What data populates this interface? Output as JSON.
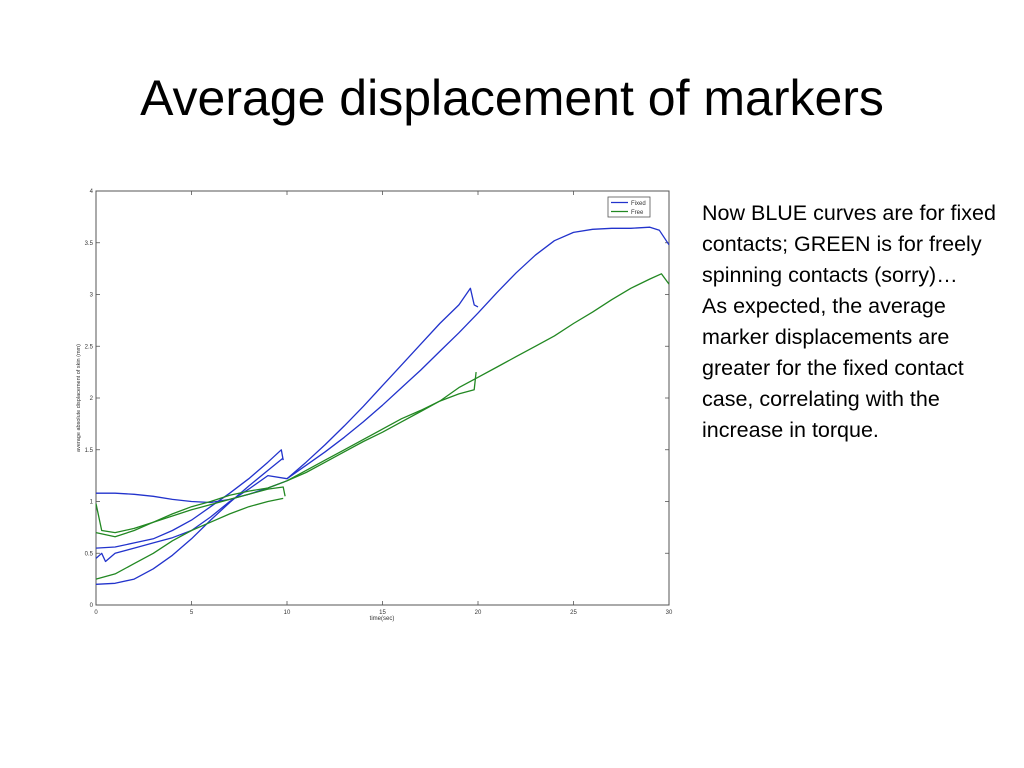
{
  "slide": {
    "title": "Average displacement of markers",
    "notes": [
      "Now BLUE curves are for fixed contacts; GREEN is for freely spinning contacts (sorry)…",
      "As expected, the average marker displacements are greater for the fixed contact case, correlating with the increase in torque."
    ]
  },
  "colors": {
    "fixed": "#2233cc",
    "free": "#228822"
  },
  "chart_data": {
    "type": "line",
    "title": "",
    "xlabel": "time(sec)",
    "ylabel": "average absolute displacement of skin (mm)",
    "xlim": [
      0,
      30
    ],
    "ylim": [
      0,
      4
    ],
    "xticks": [
      0,
      5,
      10,
      15,
      20,
      25,
      30
    ],
    "yticks": [
      0,
      0.5,
      1,
      1.5,
      2,
      2.5,
      3,
      3.5,
      4
    ],
    "grid": false,
    "legend_position": "top-right",
    "series": [
      {
        "name": "Fixed",
        "color": "#2233cc",
        "segments": [
          [
            [
              0,
              1.08
            ],
            [
              1,
              1.08
            ],
            [
              2,
              1.07
            ],
            [
              3,
              1.05
            ],
            [
              4,
              1.02
            ],
            [
              5,
              1.0
            ],
            [
              6,
              0.99
            ],
            [
              7,
              1.02
            ],
            [
              8,
              1.07
            ],
            [
              9,
              1.13
            ],
            [
              10,
              1.2
            ]
          ],
          [
            [
              0,
              0.55
            ],
            [
              1,
              0.56
            ],
            [
              2,
              0.6
            ],
            [
              3,
              0.64
            ],
            [
              4,
              0.72
            ],
            [
              5,
              0.82
            ],
            [
              6,
              0.95
            ],
            [
              7,
              1.08
            ],
            [
              8,
              1.22
            ],
            [
              9,
              1.38
            ],
            [
              9.7,
              1.5
            ],
            [
              9.8,
              1.4
            ]
          ],
          [
            [
              0,
              0.2
            ],
            [
              1,
              0.21
            ],
            [
              2,
              0.25
            ],
            [
              3,
              0.35
            ],
            [
              4,
              0.48
            ],
            [
              5,
              0.64
            ],
            [
              6,
              0.82
            ],
            [
              7,
              0.99
            ],
            [
              8,
              1.15
            ],
            [
              9,
              1.3
            ],
            [
              9.8,
              1.42
            ]
          ],
          [
            [
              0,
              0.45
            ],
            [
              0.3,
              0.5
            ],
            [
              0.5,
              0.42
            ],
            [
              1,
              0.5
            ],
            [
              2,
              0.55
            ],
            [
              3,
              0.6
            ],
            [
              4,
              0.65
            ],
            [
              5,
              0.72
            ],
            [
              6,
              0.85
            ],
            [
              7,
              1.0
            ],
            [
              8,
              1.12
            ],
            [
              9,
              1.25
            ],
            [
              10,
              1.22
            ],
            [
              11,
              1.38
            ],
            [
              12,
              1.55
            ],
            [
              13,
              1.73
            ],
            [
              14,
              1.92
            ],
            [
              15,
              2.12
            ],
            [
              16,
              2.32
            ],
            [
              17,
              2.52
            ],
            [
              18,
              2.72
            ],
            [
              19,
              2.9
            ],
            [
              19.6,
              3.06
            ],
            [
              19.8,
              2.9
            ],
            [
              20,
              2.88
            ]
          ],
          [
            [
              10,
              1.22
            ],
            [
              11,
              1.35
            ],
            [
              12,
              1.48
            ],
            [
              13,
              1.62
            ],
            [
              14,
              1.77
            ],
            [
              15,
              1.93
            ],
            [
              16,
              2.1
            ],
            [
              17,
              2.27
            ],
            [
              18,
              2.45
            ],
            [
              19,
              2.63
            ],
            [
              20,
              2.82
            ],
            [
              21,
              3.02
            ],
            [
              22,
              3.21
            ],
            [
              23,
              3.38
            ],
            [
              24,
              3.52
            ],
            [
              25,
              3.6
            ],
            [
              26,
              3.63
            ],
            [
              27,
              3.64
            ],
            [
              28,
              3.64
            ],
            [
              29,
              3.65
            ],
            [
              29.5,
              3.62
            ],
            [
              30,
              3.48
            ]
          ]
        ]
      },
      {
        "name": "Free",
        "color": "#228822",
        "segments": [
          [
            [
              0,
              0.98
            ],
            [
              0.3,
              0.72
            ],
            [
              1,
              0.7
            ],
            [
              2,
              0.74
            ],
            [
              3,
              0.8
            ],
            [
              4,
              0.86
            ],
            [
              5,
              0.92
            ],
            [
              6,
              0.97
            ],
            [
              7,
              1.02
            ],
            [
              8,
              1.07
            ],
            [
              9,
              1.12
            ],
            [
              9.8,
              1.14
            ],
            [
              9.9,
              1.05
            ]
          ],
          [
            [
              0,
              0.7
            ],
            [
              1,
              0.66
            ],
            [
              2,
              0.72
            ],
            [
              3,
              0.8
            ],
            [
              4,
              0.88
            ],
            [
              5,
              0.95
            ],
            [
              6,
              1.0
            ],
            [
              7,
              1.06
            ],
            [
              8,
              1.1
            ],
            [
              9,
              1.13
            ],
            [
              10,
              1.2
            ]
          ],
          [
            [
              0,
              0.25
            ],
            [
              1,
              0.3
            ],
            [
              2,
              0.4
            ],
            [
              3,
              0.5
            ],
            [
              4,
              0.62
            ],
            [
              5,
              0.72
            ],
            [
              6,
              0.8
            ],
            [
              7,
              0.88
            ],
            [
              8,
              0.95
            ],
            [
              9,
              1.0
            ],
            [
              9.8,
              1.03
            ]
          ],
          [
            [
              10,
              1.2
            ],
            [
              11,
              1.3
            ],
            [
              12,
              1.4
            ],
            [
              13,
              1.5
            ],
            [
              14,
              1.6
            ],
            [
              15,
              1.7
            ],
            [
              16,
              1.8
            ],
            [
              17,
              1.88
            ],
            [
              18,
              1.97
            ],
            [
              19,
              2.04
            ],
            [
              19.8,
              2.08
            ],
            [
              19.9,
              2.25
            ]
          ],
          [
            [
              10,
              1.2
            ],
            [
              11,
              1.28
            ],
            [
              12,
              1.38
            ],
            [
              13,
              1.48
            ],
            [
              14,
              1.58
            ],
            [
              15,
              1.67
            ],
            [
              16,
              1.77
            ],
            [
              17,
              1.87
            ],
            [
              18,
              1.97
            ],
            [
              19,
              2.1
            ],
            [
              20,
              2.2
            ],
            [
              21,
              2.3
            ],
            [
              22,
              2.4
            ],
            [
              23,
              2.5
            ],
            [
              24,
              2.6
            ],
            [
              25,
              2.72
            ],
            [
              26,
              2.83
            ],
            [
              27,
              2.95
            ],
            [
              28,
              3.06
            ],
            [
              29,
              3.15
            ],
            [
              29.6,
              3.2
            ],
            [
              30,
              3.1
            ]
          ]
        ]
      }
    ]
  }
}
